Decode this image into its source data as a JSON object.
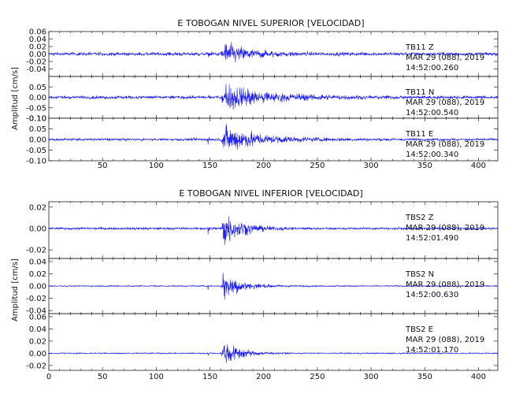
{
  "colors": {
    "trace": "#1a1aff",
    "axis": "#222222",
    "background": "#ffffff"
  },
  "chart_data": [
    {
      "type": "line",
      "title": "E TOBOGAN NIVEL SUPERIOR [VELOCIDAD]",
      "ylabel": "Amplitud [cm/s]",
      "xlim": [
        0,
        418
      ],
      "x_ticks": [
        50,
        100,
        150,
        200,
        250,
        300,
        350,
        400
      ],
      "event_x": 162,
      "panels": [
        {
          "station": "TB11",
          "component": "Z",
          "date_line": "MAR 29 (088), 2019",
          "time_line": "14:52:00.260",
          "ylim": [
            -0.06,
            0.06
          ],
          "y_ticks": [
            0.06,
            0.04,
            0.02,
            0.0,
            -0.02,
            -0.04
          ],
          "y_tick_labels": [
            "0.06",
            "0.04",
            "0.02",
            "0.00",
            "-0.02",
            "-0.04"
          ],
          "noise": 0.006,
          "peak": 0.04,
          "decay": 22,
          "precursor": 0.02
        },
        {
          "station": "TB11",
          "component": "N",
          "date_line": "MAR 29 (088), 2019",
          "time_line": "14:52:00.540",
          "ylim": [
            -0.1,
            0.1
          ],
          "y_ticks": [
            0.05,
            0.0,
            -0.05,
            -0.1
          ],
          "y_tick_labels": [
            "0.05",
            "0.00",
            "-0.05",
            "-0.10"
          ],
          "noise": 0.01,
          "peak": 0.08,
          "decay": 40,
          "precursor": 0.02
        },
        {
          "station": "TB11",
          "component": "E",
          "date_line": "MAR 29 (088), 2019",
          "time_line": "14:52:00.340",
          "ylim": [
            -0.1,
            0.1
          ],
          "y_ticks": [
            0.1,
            0.05,
            0.0,
            -0.05,
            -0.1
          ],
          "y_tick_labels": [
            "0.10",
            "0.05",
            "0.00",
            "-0.05",
            "-0.10"
          ],
          "noise": 0.008,
          "peak": 0.085,
          "decay": 30,
          "precursor": 0.02
        }
      ]
    },
    {
      "type": "line",
      "title": "E TOBOGAN NIVEL INFERIOR [VELOCIDAD]",
      "ylabel": "Amplitud [cm/s]",
      "xlim": [
        0,
        418
      ],
      "x_ticks": [
        0,
        50,
        100,
        150,
        200,
        250,
        300,
        350,
        400
      ],
      "event_x": 162,
      "panels": [
        {
          "station": "TBS2",
          "component": "Z",
          "date_line": "MAR 29 (088), 2019",
          "time_line": "14:52:01.490",
          "ylim": [
            -0.028,
            0.025
          ],
          "y_ticks": [
            0.02,
            0.0,
            -0.02
          ],
          "y_tick_labels": [
            "0.02",
            "0.00",
            "-0.02"
          ],
          "noise": 0.0015,
          "peak": 0.022,
          "decay": 16,
          "precursor": 0.01
        },
        {
          "station": "TBS2",
          "component": "N",
          "date_line": "MAR 29 (088), 2019",
          "time_line": "14:52:00.630",
          "ylim": [
            -0.045,
            0.045
          ],
          "y_ticks": [
            0.04,
            0.02,
            0.0,
            -0.02,
            -0.04
          ],
          "y_tick_labels": [
            "0.04",
            "0.02",
            "0.00",
            "-0.02",
            "-0.04"
          ],
          "noise": 0.0015,
          "peak": 0.03,
          "decay": 16,
          "precursor": 0.006
        },
        {
          "station": "TBS2",
          "component": "E",
          "date_line": "MAR 29 (088), 2019",
          "time_line": "14:52:01.170",
          "ylim": [
            -0.028,
            0.065
          ],
          "y_ticks": [
            0.06,
            0.04,
            0.02,
            0.0,
            -0.02
          ],
          "y_tick_labels": [
            "0.06",
            "0.04",
            "0.02",
            "0.00",
            "-0.02"
          ],
          "noise": 0.0015,
          "peak": 0.03,
          "decay": 14,
          "precursor": 0.006
        }
      ]
    }
  ]
}
